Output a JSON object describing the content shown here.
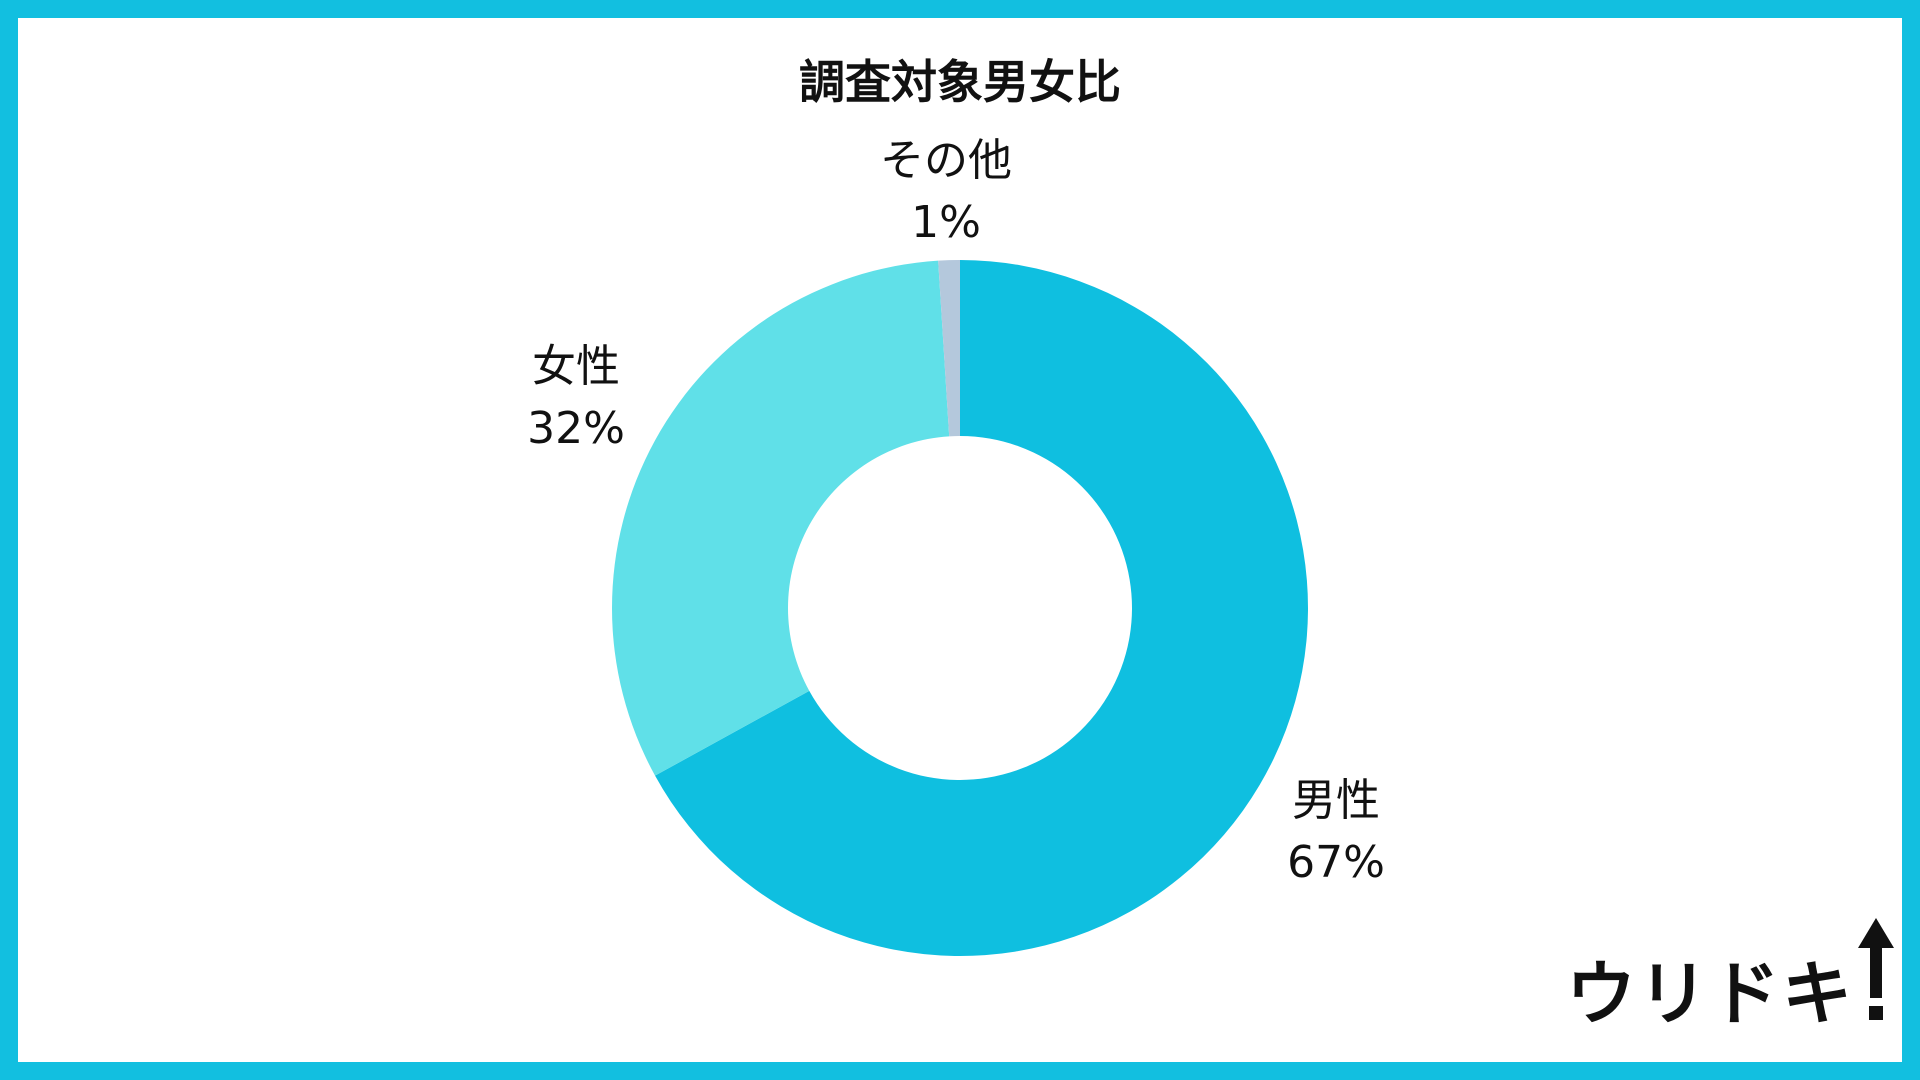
{
  "chart_data": {
    "type": "pie",
    "title": "調査対象男女比",
    "donut": true,
    "categories": [
      "男性",
      "女性",
      "その他"
    ],
    "values": [
      67,
      32,
      1
    ],
    "value_labels": [
      "67%",
      "32%",
      "1%"
    ],
    "colors": [
      "#0fbfe0",
      "#60e0e8",
      "#b4c8dc"
    ],
    "start": "12 o'clock",
    "direction": "clockwise"
  },
  "brand": {
    "logo_text": "ウリドキ",
    "logo_icon": "up-arrow-icon"
  },
  "colors": {
    "frame": "#12bfe0",
    "background": "#ffffff",
    "text": "#111111"
  }
}
